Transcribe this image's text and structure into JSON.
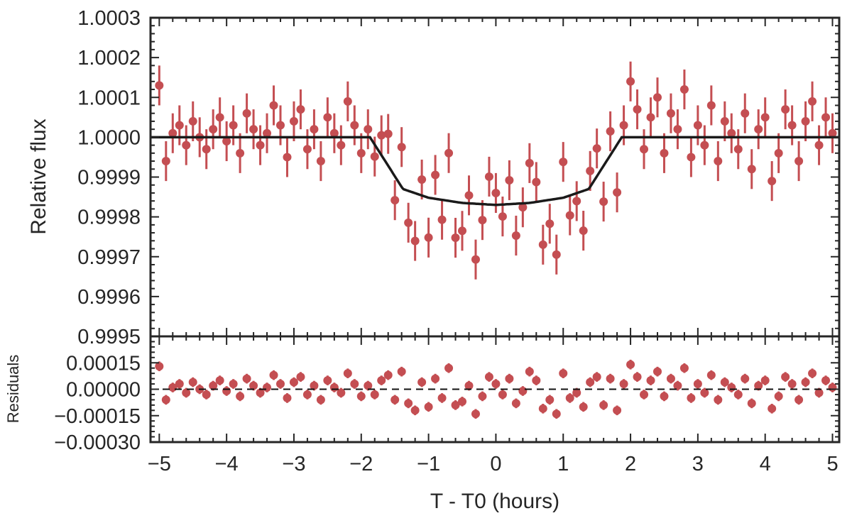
{
  "chart_data": [
    {
      "type": "scatter",
      "panel": "top",
      "title": "",
      "xlabel": "T - T0 (hours)",
      "ylabel": "Relative flux",
      "xlim": [
        -5.13,
        5.1
      ],
      "ylim": [
        0.9995,
        1.0003
      ],
      "xticks": [
        -5,
        -4,
        -3,
        -2,
        -1,
        0,
        1,
        2,
        3,
        4,
        5
      ],
      "xtick_labels": [
        "−5",
        "−4",
        "−3",
        "−2",
        "−1",
        "0",
        "1",
        "2",
        "3",
        "4",
        "5"
      ],
      "yticks": [
        0.9995,
        0.9996,
        0.9997,
        0.9998,
        0.9999,
        1.0,
        1.0001,
        1.0002,
        1.0003
      ],
      "ytick_labels": [
        "0.9995",
        "0.9996",
        "0.9997",
        "0.9998",
        "0.9999",
        "1.0000",
        "1.0001",
        "1.0002",
        "1.0003"
      ],
      "point_color": "#c44e52",
      "model_color": "#1a1a1a",
      "model": {
        "x": [
          -5.13,
          -1.87,
          -1.38,
          -1.0,
          -0.5,
          0.0,
          0.5,
          1.0,
          1.38,
          1.87,
          5.1
        ],
        "y": [
          1.0,
          1.0,
          0.99987,
          0.999848,
          0.999835,
          0.99983,
          0.999835,
          0.999848,
          0.99987,
          1.0,
          1.0
        ]
      }
    },
    {
      "type": "scatter",
      "panel": "bottom",
      "ylabel": "Residuals",
      "ylim": [
        -0.0003,
        0.0003
      ],
      "yticks": [
        0.00015,
        0.0,
        -0.00015,
        -0.0003
      ],
      "ytick_labels": [
        "0.00015",
        "0.00000",
        "−0.00015",
        "−0.00030"
      ],
      "x_start": -5.0,
      "x_step": 0.1,
      "residual_scale": 1e-05,
      "residuals": [
        13,
        -6,
        1,
        3,
        -2,
        4,
        0,
        -3,
        2,
        5,
        -1,
        3,
        -4,
        6,
        2,
        -2,
        1,
        8,
        3,
        -5,
        4,
        7,
        -3,
        2,
        -6,
        5,
        1,
        -2,
        9,
        3,
        -4,
        2,
        -3,
        5,
        8,
        -6,
        10,
        -8,
        -12,
        4,
        -10,
        6,
        -5,
        12,
        -9,
        -7,
        2,
        -14,
        -4,
        7,
        3,
        -3,
        6,
        -8,
        -1,
        10,
        5,
        -11,
        -6,
        -14,
        9,
        -5,
        -2,
        -10,
        4,
        7,
        -9,
        6,
        -12,
        3,
        14,
        7,
        -3,
        5,
        10,
        -4,
        6,
        2,
        12,
        -5,
        3,
        -2,
        8,
        -6,
        4,
        1,
        -3,
        6,
        -8,
        2,
        5,
        -11,
        -4,
        7,
        3,
        -6,
        4,
        9,
        -2,
        5,
        1
      ],
      "yerr": 5e-05,
      "zero_line": "dashed"
    }
  ]
}
